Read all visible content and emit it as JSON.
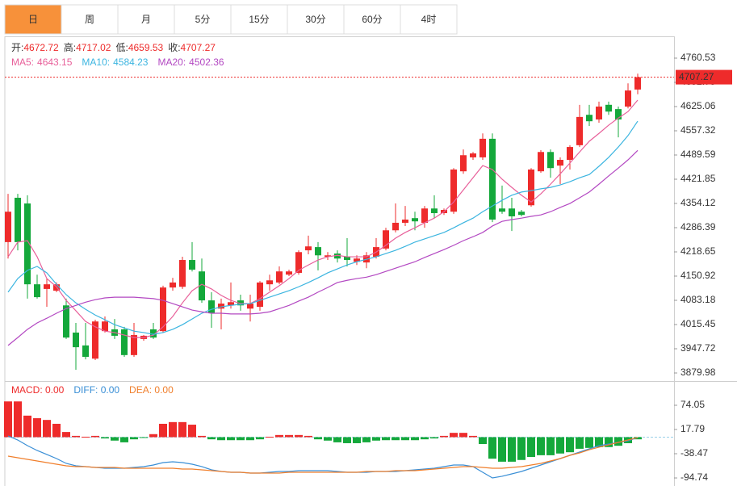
{
  "tabs": [
    "日",
    "周",
    "月",
    "5分",
    "15分",
    "30分",
    "60分",
    "4时"
  ],
  "active_tab": 0,
  "chart_data": [
    {
      "type": "candlestick",
      "up_color": "#ee2b2b",
      "down_color": "#14a83b",
      "ohlc_labels": [
        "开:",
        "高:",
        "低:",
        "收:"
      ],
      "open": [
        4246,
        4370,
        4354,
        4128,
        4115,
        4110,
        4069,
        3993,
        3957,
        3920,
        3997,
        4002,
        4002,
        3930,
        3975,
        4002,
        3997,
        4119,
        4121,
        4196,
        4164,
        4083,
        4060,
        4069,
        4083,
        4060,
        4065,
        4128,
        4133,
        4155,
        4160,
        4223,
        4232,
        4205,
        4214,
        4205,
        4191,
        4189,
        4205,
        4228,
        4279,
        4300,
        4313,
        4300,
        4340,
        4327,
        4331,
        4444,
        4483,
        4483,
        4535,
        4340,
        4340,
        4331,
        4349,
        4444,
        4498,
        4460,
        4476,
        4517,
        4602,
        4589,
        4630,
        4618,
        4625,
        4672.72
      ],
      "high": [
        4381,
        4381,
        4377,
        4155,
        4144,
        4133,
        4088,
        4020,
        4020,
        4029,
        4038,
        4031,
        4009,
        4020,
        3986,
        4020,
        4124,
        4146,
        4205,
        4246,
        4200,
        4106,
        4088,
        4133,
        4099,
        4099,
        4137,
        4155,
        4178,
        4169,
        4223,
        4264,
        4246,
        4218,
        4223,
        4257,
        4209,
        4218,
        4257,
        4286,
        4354,
        4347,
        4331,
        4347,
        4377,
        4340,
        4453,
        4505,
        4498,
        4550,
        4550,
        4404,
        4370,
        4336,
        4453,
        4503,
        4505,
        4483,
        4517,
        4630,
        4630,
        4639,
        4639,
        4625,
        4690,
        4717.02
      ],
      "low": [
        4200,
        4223,
        4088,
        4088,
        4065,
        4106,
        3975,
        3889,
        3918,
        3916,
        3993,
        3975,
        3925,
        3925,
        3970,
        3975,
        3993,
        4110,
        4115,
        4164,
        4076,
        4006,
        4002,
        4060,
        4054,
        4024,
        4054,
        4110,
        4128,
        4151,
        4155,
        4212,
        4167,
        4196,
        4189,
        4178,
        4182,
        4173,
        4200,
        4223,
        4273,
        4291,
        4279,
        4286,
        4313,
        4322,
        4325,
        4437,
        4476,
        4476,
        4302,
        4325,
        4277,
        4318,
        4345,
        4440,
        4426,
        4408,
        4449,
        4512,
        4571,
        4580,
        4602,
        4539,
        4620,
        4659.53
      ],
      "close": [
        4331,
        4246,
        4128,
        4092,
        4128,
        4128,
        3979,
        3952,
        3925,
        4024,
        4024,
        3984,
        3930,
        3986,
        3984,
        3979,
        4119,
        4133,
        4196,
        4169,
        4083,
        4047,
        4074,
        4078,
        4069,
        4074,
        4133,
        4139,
        4164,
        4164,
        4218,
        4234,
        4209,
        4209,
        4200,
        4196,
        4200,
        4209,
        4232,
        4279,
        4300,
        4309,
        4304,
        4340,
        4327,
        4336,
        4449,
        4489,
        4494,
        4535,
        4309,
        4331,
        4318,
        4322,
        4449,
        4498,
        4453,
        4476,
        4512,
        4596,
        4584,
        4625,
        4611,
        4589,
        4670,
        4707.27
      ],
      "series": [
        {
          "name": "MA5:",
          "color": "#e8609a",
          "values": [
            4205,
            4246,
            4250,
            4205,
            4144,
            4121,
            4083,
            4054,
            4024,
            4009,
            3997,
            3993,
            3986,
            3979,
            3979,
            3986,
            4009,
            4038,
            4076,
            4110,
            4128,
            4115,
            4097,
            4083,
            4074,
            4074,
            4088,
            4106,
            4124,
            4144,
            4167,
            4182,
            4196,
            4205,
            4209,
            4205,
            4205,
            4205,
            4218,
            4237,
            4257,
            4273,
            4286,
            4300,
            4313,
            4331,
            4358,
            4392,
            4426,
            4460,
            4449,
            4422,
            4399,
            4377,
            4358,
            4381,
            4408,
            4437,
            4467,
            4498,
            4528,
            4550,
            4573,
            4593,
            4611,
            4643.15
          ]
        },
        {
          "name": "MA10:",
          "color": "#3cb5e0",
          "values": [
            4106,
            4144,
            4167,
            4178,
            4160,
            4128,
            4099,
            4076,
            4058,
            4042,
            4029,
            4015,
            4006,
            3997,
            3993,
            3988,
            3993,
            4002,
            4015,
            4031,
            4047,
            4058,
            4065,
            4069,
            4072,
            4074,
            4083,
            4092,
            4101,
            4110,
            4121,
            4133,
            4146,
            4160,
            4171,
            4182,
            4191,
            4198,
            4205,
            4214,
            4223,
            4234,
            4246,
            4255,
            4264,
            4273,
            4286,
            4300,
            4313,
            4331,
            4347,
            4363,
            4377,
            4386,
            4390,
            4395,
            4399,
            4406,
            4415,
            4426,
            4435,
            4458,
            4483,
            4512,
            4544,
            4584.23
          ]
        },
        {
          "name": "MA20:",
          "color": "#b348c2",
          "values": [
            3957,
            3979,
            4002,
            4020,
            4033,
            4047,
            4060,
            4069,
            4078,
            4085,
            4090,
            4092,
            4092,
            4092,
            4090,
            4088,
            4083,
            4074,
            4065,
            4056,
            4051,
            4047,
            4047,
            4045,
            4045,
            4045,
            4047,
            4051,
            4060,
            4069,
            4081,
            4092,
            4106,
            4119,
            4133,
            4139,
            4144,
            4148,
            4155,
            4164,
            4173,
            4182,
            4191,
            4203,
            4214,
            4225,
            4237,
            4250,
            4261,
            4273,
            4291,
            4304,
            4309,
            4313,
            4318,
            4322,
            4331,
            4343,
            4354,
            4370,
            4386,
            4408,
            4431,
            4453,
            4476,
            4502.36
          ]
        }
      ],
      "ylim": [
        3861.9,
        4821.5
      ],
      "yticks": [
        4760.53,
        4692.79,
        4625.06,
        4557.32,
        4489.59,
        4421.85,
        4354.12,
        4286.39,
        4218.65,
        4150.92,
        4083.18,
        4015.45,
        3947.72,
        3879.98
      ]
    },
    {
      "type": "macd",
      "histogram": {
        "name": "MACD: 0.00",
        "up_color": "#ee2b2b",
        "down_color": "#14a83b",
        "values": [
          83,
          83,
          50,
          44,
          40,
          31,
          12,
          3,
          1,
          3,
          -3,
          -8,
          -12,
          -5,
          -1,
          7,
          31,
          35,
          35,
          29,
          3,
          -5,
          -7,
          -7,
          -7,
          -7,
          -5,
          1,
          5,
          5,
          5,
          3,
          -5,
          -8,
          -12,
          -14,
          -14,
          -12,
          -8,
          -7,
          -7,
          -7,
          -7,
          -5,
          -3,
          3,
          10,
          10,
          3,
          -16,
          -50,
          -57,
          -57,
          -53,
          -46,
          -42,
          -42,
          -38,
          -35,
          -27,
          -25,
          -23,
          -23,
          -20,
          -14,
          -5
        ]
      },
      "series": [
        {
          "name": "DIFF: 0.00",
          "color": "#3a8fd6",
          "values": [
            2.8,
            -6.6,
            -19.7,
            -30.9,
            -40.3,
            -49.7,
            -60.9,
            -66.6,
            -68.4,
            -70.3,
            -72.2,
            -72.2,
            -72.2,
            -70.3,
            -68.4,
            -64.7,
            -59.1,
            -57.2,
            -59.1,
            -62.8,
            -68.4,
            -75.9,
            -79.7,
            -81.6,
            -81.6,
            -83.4,
            -83.4,
            -81.6,
            -79.7,
            -79.7,
            -77.8,
            -77.8,
            -77.8,
            -77.8,
            -79.7,
            -81.6,
            -81.6,
            -81.6,
            -79.7,
            -79.7,
            -79.7,
            -77.8,
            -75.9,
            -74.1,
            -72.2,
            -68.4,
            -64.7,
            -64.7,
            -68.4,
            -81.6,
            -94.7,
            -90.9,
            -85.3,
            -79.7,
            -72.2,
            -64.7,
            -57.2,
            -49.7,
            -42.2,
            -34.7,
            -27.2,
            -19.7,
            -15.9,
            -12.2,
            -8.4,
            -0.9
          ]
        },
        {
          "name": "DEA: 0.00",
          "color": "#f07f2c",
          "values": [
            -44.1,
            -47.8,
            -51.6,
            -55.3,
            -59.1,
            -62.8,
            -66.6,
            -68.4,
            -68.4,
            -70.3,
            -70.3,
            -70.3,
            -72.2,
            -72.2,
            -72.2,
            -72.2,
            -72.2,
            -72.2,
            -74.1,
            -74.1,
            -75.9,
            -77.8,
            -79.7,
            -81.6,
            -81.6,
            -83.4,
            -83.4,
            -83.4,
            -83.4,
            -81.6,
            -81.6,
            -81.6,
            -81.6,
            -81.6,
            -81.6,
            -81.6,
            -81.6,
            -79.7,
            -79.7,
            -79.7,
            -77.8,
            -77.8,
            -77.8,
            -75.9,
            -74.1,
            -72.2,
            -70.3,
            -68.4,
            -68.4,
            -70.3,
            -72.2,
            -72.2,
            -70.3,
            -68.4,
            -64.7,
            -60.9,
            -55.3,
            -49.7,
            -42.2,
            -36.6,
            -29.1,
            -23.4,
            -17.8,
            -12.2,
            -6.6,
            -0.9
          ]
        }
      ],
      "ylim": [
        -109.7,
        124.7
      ],
      "yticks": [
        74.05,
        17.79,
        -38.47,
        -94.74
      ]
    }
  ]
}
